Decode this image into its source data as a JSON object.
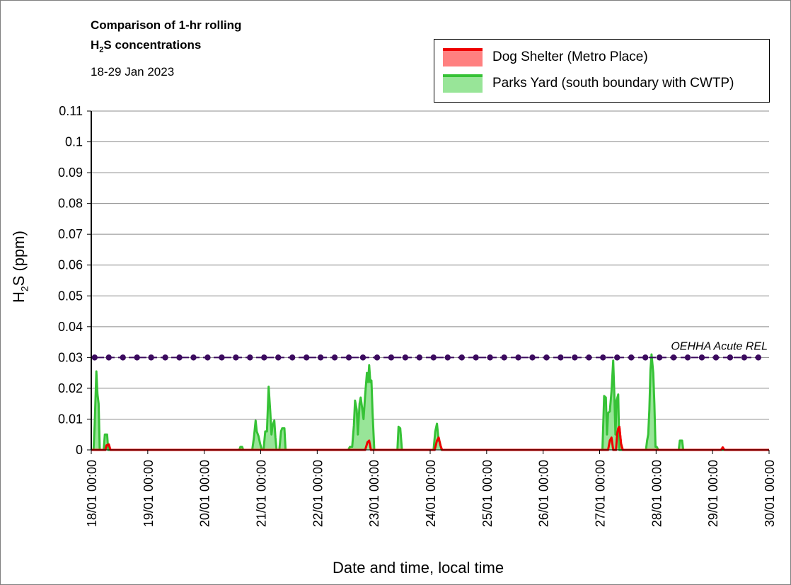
{
  "chart_data": {
    "type": "area",
    "title_line1": "Comparison of 1-hr rolling",
    "title_line2_prefix": "H",
    "title_line2_sub": "2",
    "title_line2_suffix": "S concentrations",
    "subtitle": "18-29 Jan 2023",
    "ylabel_prefix": "H",
    "ylabel_sub": "2",
    "ylabel_suffix": "S (ppm)",
    "xlabel": "Date and time, local time",
    "ylim": [
      0,
      0.11
    ],
    "xlim_days": [
      0,
      12
    ],
    "grid": true,
    "legend_position": "top-right",
    "y_ticks": [
      "0",
      "0.01",
      "0.02",
      "0.03",
      "0.04",
      "0.05",
      "0.06",
      "0.07",
      "0.08",
      "0.09",
      "0.1",
      "0.11"
    ],
    "x_ticks": [
      "18/01 00:00",
      "19/01 00:00",
      "20/01 00:00",
      "21/01 00:00",
      "22/01 00:00",
      "23/01 00:00",
      "24/01 00:00",
      "25/01 00:00",
      "26/01 00:00",
      "27/01 00:00",
      "28/01 00:00",
      "29/01 00:00",
      "30/01 00:00"
    ],
    "reference_line": {
      "label": "OEHHA Acute REL",
      "value": 0.03,
      "color": "#3b0a5e"
    },
    "series": [
      {
        "name": "Dog Shelter (Metro Place)",
        "line_color": "#ee0000",
        "fill_color": "#ff8080",
        "points": [
          [
            0,
            0
          ],
          [
            0.25,
            0
          ],
          [
            0.27,
            0.0015
          ],
          [
            0.31,
            0.0018
          ],
          [
            0.34,
            0
          ],
          [
            4.85,
            0
          ],
          [
            4.89,
            0.0025
          ],
          [
            4.92,
            0.003
          ],
          [
            4.95,
            0
          ],
          [
            6.08,
            0
          ],
          [
            6.12,
            0.003
          ],
          [
            6.15,
            0.004
          ],
          [
            6.18,
            0.0015
          ],
          [
            6.21,
            0
          ],
          [
            9.15,
            0
          ],
          [
            9.18,
            0.003
          ],
          [
            9.21,
            0.004
          ],
          [
            9.24,
            0
          ],
          [
            9.29,
            0
          ],
          [
            9.31,
            0.005
          ],
          [
            9.33,
            0.007
          ],
          [
            9.35,
            0.0075
          ],
          [
            9.38,
            0.002
          ],
          [
            9.41,
            0
          ],
          [
            11.15,
            0
          ],
          [
            11.18,
            0.0008
          ],
          [
            11.21,
            0
          ],
          [
            12,
            0
          ]
        ]
      },
      {
        "name": "Parks Yard (south boundary with CWTP)",
        "line_color": "#36c236",
        "fill_color": "#98e598",
        "points": [
          [
            0,
            0
          ],
          [
            0.04,
            0
          ],
          [
            0.06,
            0.008
          ],
          [
            0.09,
            0.0255
          ],
          [
            0.11,
            0.018
          ],
          [
            0.13,
            0.015
          ],
          [
            0.15,
            0
          ],
          [
            0.22,
            0
          ],
          [
            0.24,
            0.005
          ],
          [
            0.28,
            0.005
          ],
          [
            0.3,
            0
          ],
          [
            2.62,
            0
          ],
          [
            2.64,
            0.001
          ],
          [
            2.67,
            0.001
          ],
          [
            2.69,
            0
          ],
          [
            2.85,
            0
          ],
          [
            2.88,
            0.004
          ],
          [
            2.91,
            0.0095
          ],
          [
            2.93,
            0.006
          ],
          [
            2.96,
            0.0045
          ],
          [
            2.99,
            0.002
          ],
          [
            3.02,
            0
          ],
          [
            3.05,
            0
          ],
          [
            3.08,
            0.006
          ],
          [
            3.11,
            0.006
          ],
          [
            3.14,
            0.0205
          ],
          [
            3.17,
            0.012
          ],
          [
            3.19,
            0.005
          ],
          [
            3.21,
            0.008
          ],
          [
            3.24,
            0.0095
          ],
          [
            3.26,
            0.004
          ],
          [
            3.28,
            0
          ],
          [
            3.33,
            0
          ],
          [
            3.36,
            0.006
          ],
          [
            3.38,
            0.007
          ],
          [
            3.42,
            0.007
          ],
          [
            3.44,
            0
          ],
          [
            4.55,
            0
          ],
          [
            4.58,
            0.001
          ],
          [
            4.62,
            0.001
          ],
          [
            4.65,
            0.008
          ],
          [
            4.67,
            0.016
          ],
          [
            4.7,
            0.013
          ],
          [
            4.72,
            0.005
          ],
          [
            4.75,
            0.015
          ],
          [
            4.77,
            0.017
          ],
          [
            4.8,
            0.013
          ],
          [
            4.82,
            0.01
          ],
          [
            4.85,
            0.018
          ],
          [
            4.88,
            0.025
          ],
          [
            4.9,
            0.022
          ],
          [
            4.92,
            0.0275
          ],
          [
            4.94,
            0.022
          ],
          [
            4.96,
            0.0225
          ],
          [
            4.98,
            0.012
          ],
          [
            5.01,
            0
          ],
          [
            5.42,
            0
          ],
          [
            5.44,
            0.0075
          ],
          [
            5.47,
            0.007
          ],
          [
            5.5,
            0
          ],
          [
            6.06,
            0
          ],
          [
            6.09,
            0.006
          ],
          [
            6.12,
            0.0085
          ],
          [
            6.15,
            0.003
          ],
          [
            6.17,
            0.0025
          ],
          [
            6.2,
            0
          ],
          [
            9.05,
            0
          ],
          [
            9.08,
            0.0175
          ],
          [
            9.11,
            0.017
          ],
          [
            9.13,
            0.005
          ],
          [
            9.15,
            0.012
          ],
          [
            9.18,
            0.0125
          ],
          [
            9.21,
            0.019
          ],
          [
            9.24,
            0.029
          ],
          [
            9.26,
            0.018
          ],
          [
            9.28,
            0.005
          ],
          [
            9.3,
            0.016
          ],
          [
            9.33,
            0.018
          ],
          [
            9.35,
            0
          ],
          [
            9.82,
            0
          ],
          [
            9.84,
            0.003
          ],
          [
            9.86,
            0.005
          ],
          [
            9.88,
            0.013
          ],
          [
            9.9,
            0.026
          ],
          [
            9.92,
            0.031
          ],
          [
            9.95,
            0.025
          ],
          [
            9.97,
            0.015
          ],
          [
            9.99,
            0.001
          ],
          [
            10.01,
            0.001
          ],
          [
            10.04,
            0
          ],
          [
            10.4,
            0
          ],
          [
            10.42,
            0.003
          ],
          [
            10.46,
            0.003
          ],
          [
            10.48,
            0
          ],
          [
            12,
            0
          ]
        ]
      }
    ]
  }
}
